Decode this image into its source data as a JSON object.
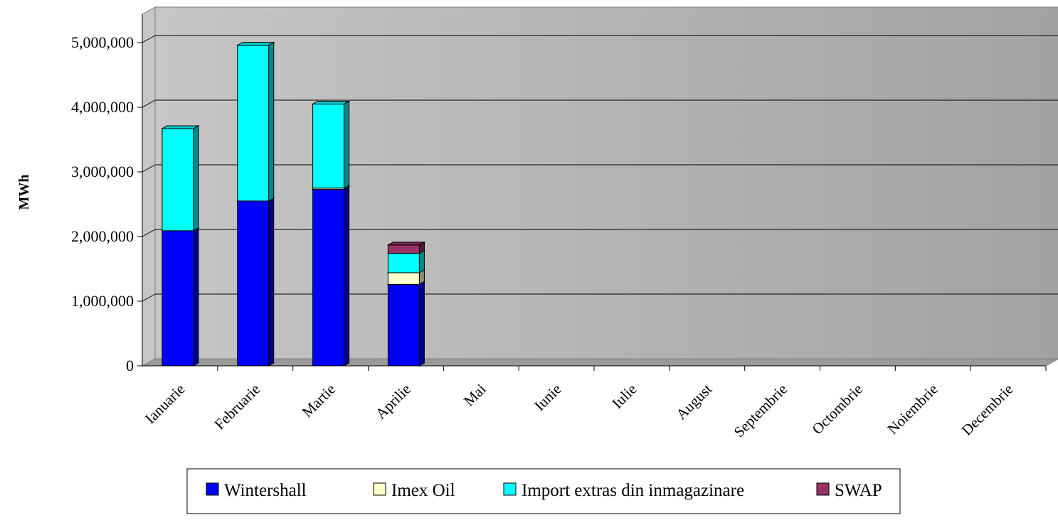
{
  "chart_data": {
    "type": "bar",
    "stacked": true,
    "style": "3d",
    "title": "",
    "xlabel": "",
    "ylabel": "MWh",
    "ylim": [
      0,
      5000000
    ],
    "yticks": [
      0,
      1000000,
      2000000,
      3000000,
      4000000,
      5000000
    ],
    "ytick_labels": [
      "0",
      "1,000,000",
      "2,000,000",
      "3,000,000",
      "4,000,000",
      "5,000,000"
    ],
    "grid": true,
    "legend_position": "bottom",
    "categories": [
      "Ianuarie",
      "Februarie",
      "Martie",
      "Aprilie",
      "Mai",
      "Iunie",
      "Iulie",
      "August",
      "Septembrie",
      "Octombrie",
      "Noiembrie",
      "Decembrie"
    ],
    "series": [
      {
        "name": "Wintershall",
        "color": "#0000ff",
        "values": [
          2090000,
          2550000,
          2730000,
          1260000,
          0,
          0,
          0,
          0,
          0,
          0,
          0,
          0
        ]
      },
      {
        "name": "Imex Oil",
        "color": "#ffffcc",
        "values": [
          0,
          0,
          20000,
          180000,
          0,
          0,
          0,
          0,
          0,
          0,
          0,
          0
        ]
      },
      {
        "name": "Import extras din inmagazinare",
        "color": "#00ffff",
        "values": [
          1580000,
          2410000,
          1300000,
          300000,
          0,
          0,
          0,
          0,
          0,
          0,
          0,
          0
        ]
      },
      {
        "name": "SWAP",
        "color": "#993366",
        "values": [
          0,
          0,
          0,
          130000,
          0,
          0,
          0,
          0,
          0,
          0,
          0,
          0
        ]
      }
    ]
  }
}
